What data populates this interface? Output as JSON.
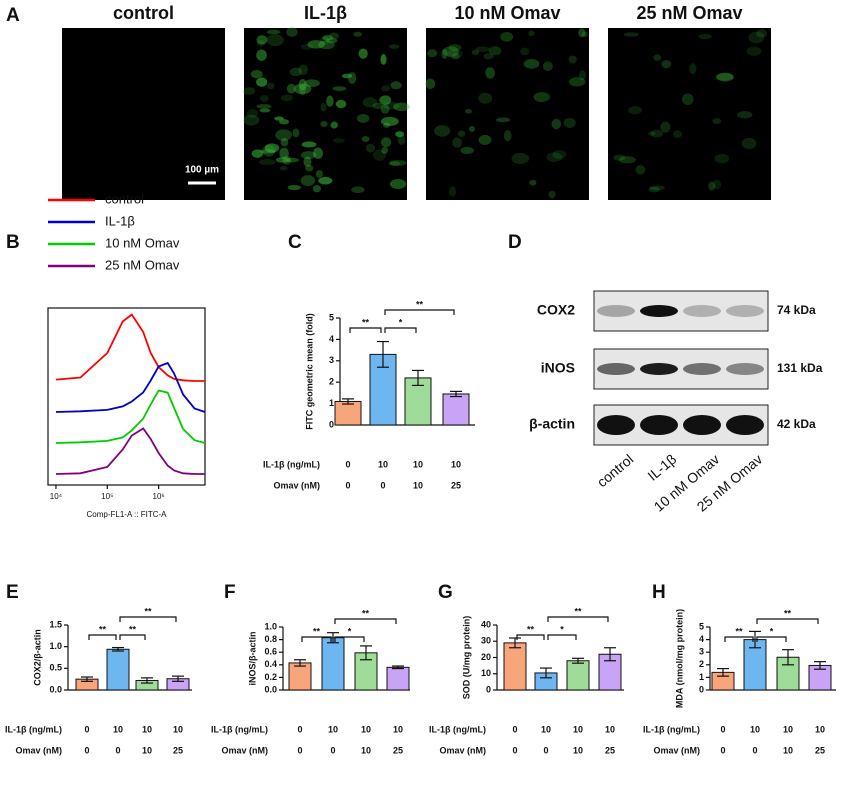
{
  "panel_labels": [
    "A",
    "B",
    "C",
    "D",
    "E",
    "F",
    "G",
    "H"
  ],
  "panel_a": {
    "titles": [
      "control",
      "IL-1β",
      "10 nM Omav",
      "25 nM Omav"
    ],
    "scale_bar": "100 µm"
  },
  "panel_d": {
    "rows": [
      "COX2",
      "iNOS",
      "β-actin"
    ],
    "sizes": [
      "74 kDa",
      "131 kDa",
      "42 kDa"
    ],
    "lanes": [
      "control",
      "IL-1β",
      "10 nM Omav",
      "25 nM Omav"
    ]
  },
  "chart_data": [
    {
      "type": "histogram-overlay",
      "xlabel": "Comp-FL1-A :: FITC-A",
      "log_x": true,
      "xlim": [
        7000,
        8000000
      ],
      "xticks": [
        {
          "value": 10000,
          "label": "10⁴"
        },
        {
          "value": 100000,
          "label": "10⁵"
        },
        {
          "value": 1000000,
          "label": "10⁶"
        }
      ],
      "ylim": [
        0,
        100
      ],
      "x": [
        10000,
        30000,
        100000,
        200000,
        300000,
        500000,
        700000,
        1000000,
        1500000,
        2000000,
        3000000,
        5000000,
        8000000
      ],
      "series": [
        {
          "name": "control",
          "color": "#ff0000",
          "values": [
            2,
            5,
            40,
            85,
            95,
            70,
            40,
            20,
            8,
            3,
            1,
            0,
            0
          ]
        },
        {
          "name": "IL-1β",
          "color": "#0000cc",
          "values": [
            0,
            1,
            3,
            8,
            15,
            28,
            45,
            65,
            70,
            55,
            25,
            5,
            0
          ]
        },
        {
          "name": "10 nM Omav",
          "color": "#00cc00",
          "values": [
            0,
            1,
            3,
            8,
            18,
            35,
            55,
            75,
            72,
            50,
            20,
            4,
            0
          ]
        },
        {
          "name": "25 nM Omav",
          "color": "#800080",
          "values": [
            0,
            1,
            10,
            35,
            55,
            65,
            50,
            30,
            12,
            5,
            1,
            0,
            0
          ]
        }
      ]
    },
    {
      "type": "bar",
      "ylabel": "FITC geometric mean (fold)",
      "ylim": [
        0,
        5
      ],
      "yticks": [
        0,
        1,
        2,
        3,
        4,
        5
      ],
      "values": [
        1.1,
        3.3,
        2.2,
        1.45
      ],
      "errors": [
        0.12,
        0.6,
        0.35,
        0.12
      ],
      "colors": [
        "#f7a57a",
        "#6db6f0",
        "#9fdc9a",
        "#c9a3f5"
      ],
      "conditions": [
        {
          "label": "IL-1β (ng/mL)",
          "values": [
            0,
            10,
            10,
            10
          ]
        },
        {
          "label": "Omav (nM)",
          "values": [
            0,
            0,
            10,
            25
          ]
        }
      ],
      "significance": [
        {
          "between": [
            0,
            1
          ],
          "label": "**"
        },
        {
          "between": [
            1,
            2
          ],
          "label": "*"
        },
        {
          "between": [
            1,
            3
          ],
          "label": "**"
        }
      ]
    },
    {
      "type": "bar",
      "ylabel": "COX2/β-actin",
      "ylim": [
        0,
        1.5
      ],
      "yticks": [
        {
          "value": 0,
          "label": "0.0"
        },
        0.5,
        {
          "value": 1,
          "label": "1.0"
        },
        1.5
      ],
      "values": [
        0.25,
        0.94,
        0.22,
        0.26
      ],
      "errors": [
        0.05,
        0.04,
        0.06,
        0.06
      ],
      "colors": [
        "#f7a57a",
        "#6db6f0",
        "#9fdc9a",
        "#c9a3f5"
      ],
      "conditions": [
        {
          "label": "IL-1β (ng/mL)",
          "values": [
            0,
            10,
            10,
            10
          ]
        },
        {
          "label": "Omav (nM)",
          "values": [
            0,
            0,
            10,
            25
          ]
        }
      ],
      "significance": [
        {
          "between": [
            0,
            1
          ],
          "label": "**"
        },
        {
          "between": [
            1,
            2
          ],
          "label": "**"
        },
        {
          "between": [
            1,
            3
          ],
          "label": "**"
        }
      ]
    },
    {
      "type": "bar",
      "ylabel": "iNOS/β-actin",
      "ylim": [
        0,
        1
      ],
      "yticks": [
        {
          "value": 0,
          "label": "0.0"
        },
        0.2,
        0.4,
        0.6,
        0.8,
        {
          "value": 1,
          "label": "1.0"
        }
      ],
      "values": [
        0.43,
        0.83,
        0.59,
        0.36
      ],
      "errors": [
        0.05,
        0.08,
        0.11,
        0.02
      ],
      "colors": [
        "#f7a57a",
        "#6db6f0",
        "#9fdc9a",
        "#c9a3f5"
      ],
      "conditions": [
        {
          "label": "IL-1β (ng/mL)",
          "values": [
            0,
            10,
            10,
            10
          ]
        },
        {
          "label": "Omav (nM)",
          "values": [
            0,
            0,
            10,
            25
          ]
        }
      ],
      "significance": [
        {
          "between": [
            0,
            1
          ],
          "label": "**"
        },
        {
          "between": [
            1,
            2
          ],
          "label": "*"
        },
        {
          "between": [
            1,
            3
          ],
          "label": "**"
        }
      ]
    },
    {
      "type": "bar",
      "ylabel": "SOD (U/mg protein)",
      "ylim": [
        0,
        40
      ],
      "yticks": [
        0,
        10,
        20,
        30,
        40
      ],
      "values": [
        29,
        10.5,
        18,
        22
      ],
      "errors": [
        3,
        3,
        1.5,
        4
      ],
      "colors": [
        "#f7a57a",
        "#6db6f0",
        "#9fdc9a",
        "#c9a3f5"
      ],
      "conditions": [
        {
          "label": "IL-1β (ng/mL)",
          "values": [
            0,
            10,
            10,
            10
          ]
        },
        {
          "label": "Omav (nM)",
          "values": [
            0,
            0,
            10,
            25
          ]
        }
      ],
      "significance": [
        {
          "between": [
            0,
            1
          ],
          "label": "**"
        },
        {
          "between": [
            1,
            2
          ],
          "label": "*"
        },
        {
          "between": [
            1,
            3
          ],
          "label": "**"
        }
      ]
    },
    {
      "type": "bar",
      "ylabel": "MDA (nmol/mg protein)",
      "ylim": [
        0,
        5
      ],
      "yticks": [
        0,
        1,
        2,
        3,
        4,
        5
      ],
      "values": [
        1.4,
        4.0,
        2.6,
        1.95
      ],
      "errors": [
        0.3,
        0.65,
        0.6,
        0.3
      ],
      "colors": [
        "#f7a57a",
        "#6db6f0",
        "#9fdc9a",
        "#c9a3f5"
      ],
      "conditions": [
        {
          "label": "IL-1β (ng/mL)",
          "values": [
            0,
            10,
            10,
            10
          ]
        },
        {
          "label": "Omav (nM)",
          "values": [
            0,
            0,
            10,
            25
          ]
        }
      ],
      "significance": [
        {
          "between": [
            0,
            1
          ],
          "label": "**"
        },
        {
          "between": [
            1,
            2
          ],
          "label": "*"
        },
        {
          "between": [
            1,
            3
          ],
          "label": "**"
        }
      ]
    }
  ]
}
